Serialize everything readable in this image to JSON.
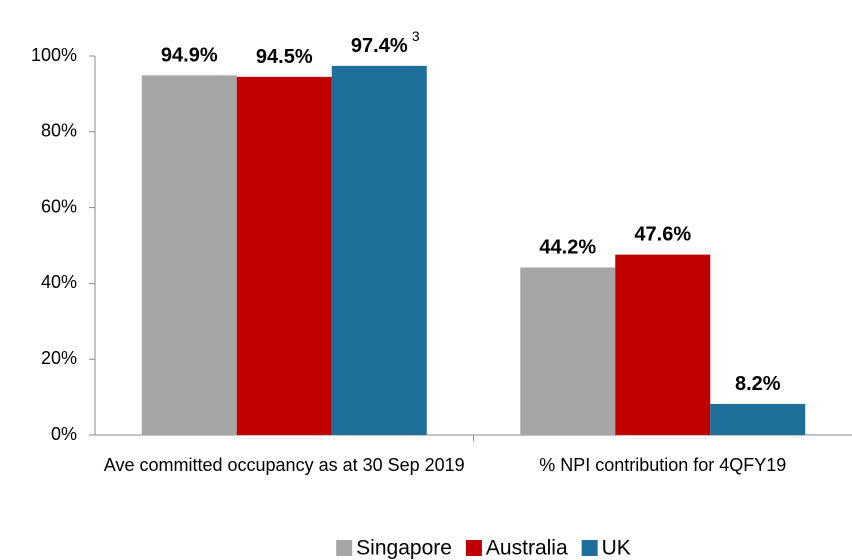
{
  "chart_data": {
    "type": "bar",
    "categories": [
      "Ave committed occupancy as at 30 Sep 2019",
      "% NPI contribution for 4QFY19"
    ],
    "series": [
      {
        "name": "Singapore",
        "color": "#a6a6a6",
        "values": [
          94.9,
          44.2
        ],
        "value_labels": [
          "94.9%",
          "44.2%"
        ]
      },
      {
        "name": "Australia",
        "color": "#c00000",
        "values": [
          94.5,
          47.6
        ],
        "value_labels": [
          "94.5%",
          "47.6%"
        ]
      },
      {
        "name": "UK",
        "color": "#1f6f9b",
        "values": [
          97.4,
          8.2
        ],
        "value_labels": [
          "97.4%",
          "8.2%"
        ]
      }
    ],
    "annotation": "3",
    "ylim": [
      0,
      100
    ],
    "yticks": [
      {
        "value": 0,
        "label": "0%"
      },
      {
        "value": 20,
        "label": "20%"
      },
      {
        "value": 40,
        "label": "40%"
      },
      {
        "value": 60,
        "label": "60%"
      },
      {
        "value": 80,
        "label": "80%"
      },
      {
        "value": 100,
        "label": "100%"
      }
    ],
    "legend": "bottom"
  }
}
